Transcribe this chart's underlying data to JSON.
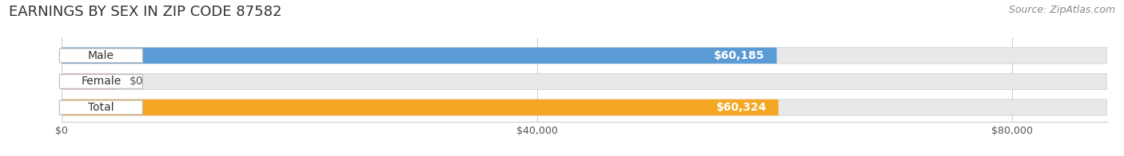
{
  "title": "EARNINGS BY SEX IN ZIP CODE 87582",
  "source": "Source: ZipAtlas.com",
  "categories": [
    "Male",
    "Female",
    "Total"
  ],
  "values": [
    60185,
    0,
    60324
  ],
  "female_visual_val": 4500,
  "bar_colors": [
    "#5b9bd5",
    "#f4a7b9",
    "#f5a623"
  ],
  "value_labels": [
    "$60,185",
    "$0",
    "$60,324"
  ],
  "x_ticks": [
    0,
    40000,
    80000
  ],
  "x_tick_labels": [
    "$0",
    "$40,000",
    "$80,000"
  ],
  "xlim_max": 88000,
  "title_fontsize": 13,
  "source_fontsize": 9,
  "value_label_fontsize": 10,
  "category_fontsize": 10,
  "background_color": "#ffffff",
  "bar_bg_color": "#e8e8e8",
  "grid_color": "#d0d0d0"
}
